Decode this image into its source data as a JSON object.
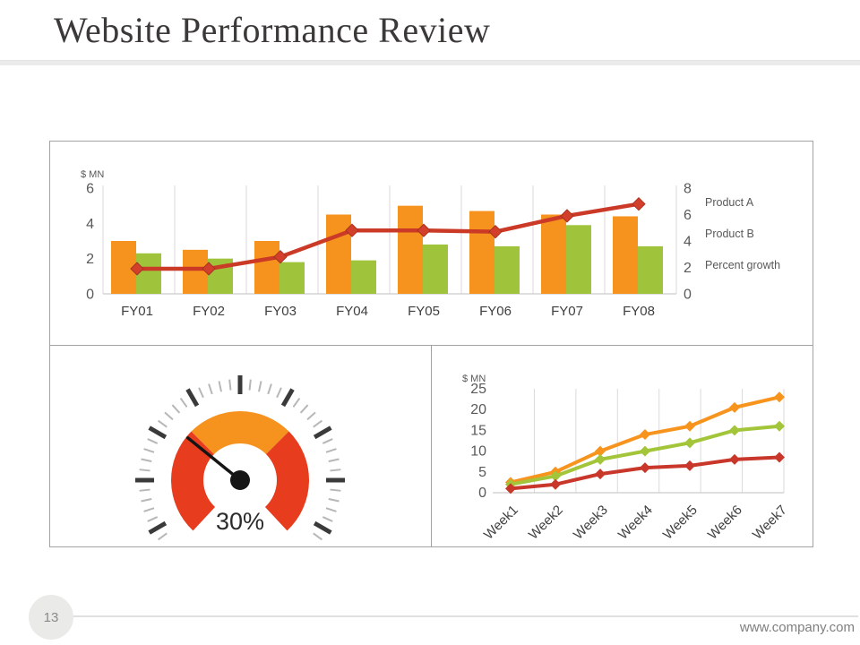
{
  "slide": {
    "title": "Website Performance Review",
    "footer": {
      "page_number": "13",
      "website": "www.company.com"
    }
  },
  "chart_data": [
    {
      "id": "fy_combo",
      "type": "bar",
      "unit_label": "$ MN",
      "categories": [
        "FY01",
        "FY02",
        "FY03",
        "FY04",
        "FY05",
        "FY06",
        "FY07",
        "FY08"
      ],
      "series": [
        {
          "name": "Product A",
          "type": "bar",
          "axis": "left",
          "color": "#F6921E",
          "values": [
            3.0,
            2.5,
            3.0,
            4.5,
            5.0,
            4.7,
            4.5,
            4.4
          ]
        },
        {
          "name": "Product B",
          "type": "bar",
          "axis": "left",
          "color": "#9FC43C",
          "values": [
            2.3,
            2.0,
            1.8,
            1.9,
            2.8,
            2.7,
            3.9,
            2.7
          ]
        },
        {
          "name": "Percent growth",
          "type": "line",
          "axis": "right",
          "color": "#CB3927",
          "values": [
            1.9,
            1.9,
            2.8,
            4.8,
            4.8,
            4.7,
            5.9,
            6.8
          ]
        }
      ],
      "left_axis": {
        "ticks": [
          0,
          2,
          4,
          6
        ],
        "min": 0,
        "max": 6
      },
      "right_axis": {
        "ticks": [
          0,
          2,
          4,
          6,
          8
        ],
        "min": 0,
        "max": 8
      },
      "legend_position": "right",
      "grid": "vertical"
    },
    {
      "id": "gauge",
      "type": "gauge",
      "value_label": "30%",
      "value_percent": 30,
      "needle_angle_deg": -51,
      "segments": [
        {
          "from_deg": -137,
          "to_deg": -45,
          "color": "#E73C1E"
        },
        {
          "from_deg": -45,
          "to_deg": 45,
          "color": "#F6921E"
        },
        {
          "from_deg": 45,
          "to_deg": 137,
          "color": "#E73C1E"
        }
      ]
    },
    {
      "id": "weekly_lines",
      "type": "line",
      "unit_label": "$ MN",
      "categories": [
        "Week1",
        "Week2",
        "Week3",
        "Week4",
        "Week5",
        "Week6",
        "Week7"
      ],
      "series": [
        {
          "color": "#F7941E",
          "values": [
            2.5,
            5,
            10,
            14,
            16,
            20.5,
            23
          ]
        },
        {
          "color": "#A3C53A",
          "values": [
            2,
            4,
            8,
            10,
            12,
            15,
            16
          ]
        },
        {
          "color": "#C8372A",
          "values": [
            1,
            2,
            4.5,
            6,
            6.5,
            8,
            8.5
          ]
        }
      ],
      "y_axis": {
        "ticks": [
          0,
          5,
          10,
          15,
          20,
          25
        ],
        "min": 0,
        "max": 25
      },
      "grid": "vertical",
      "legend_position": "none"
    }
  ]
}
